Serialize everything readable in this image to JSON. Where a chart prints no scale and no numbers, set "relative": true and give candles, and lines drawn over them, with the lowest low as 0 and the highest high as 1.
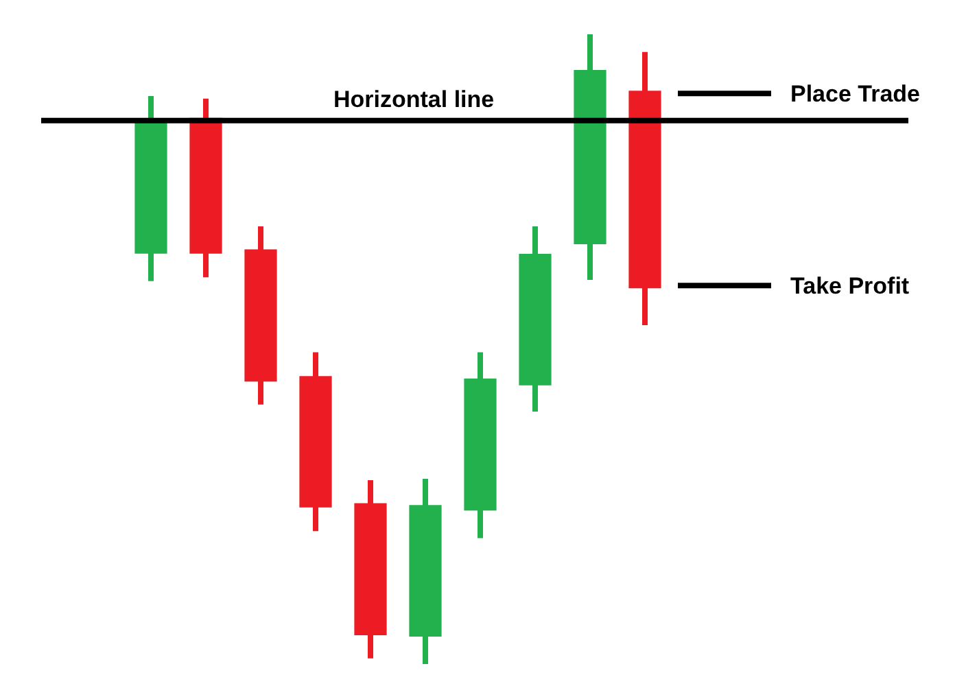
{
  "chart_data": {
    "type": "candlestick",
    "relative": true,
    "categories": [
      null,
      null,
      null,
      null,
      null,
      null,
      null,
      null,
      null,
      null
    ],
    "ohlc": [
      [
        0.656,
        0.902,
        0.608,
        0.858
      ],
      [
        0.863,
        0.898,
        0.614,
        0.656
      ],
      [
        0.654,
        0.695,
        0.412,
        0.453
      ],
      [
        0.453,
        0.495,
        0.211,
        0.253
      ],
      [
        0.251,
        0.292,
        0.009,
        0.05
      ],
      [
        0.048,
        0.294,
        0,
        0.248
      ],
      [
        0.248,
        0.495,
        0.2,
        0.449
      ],
      [
        0.447,
        0.695,
        0.401,
        0.647
      ],
      [
        0.671,
        1,
        0.61,
        0.939
      ],
      [
        0.906,
        0.972,
        0.538,
        0.601
      ]
    ],
    "colors": [
      "#22b14c",
      "#ed1c24",
      "#ed1c24",
      "#ed1c24",
      "#ed1c24",
      "#22b14c",
      "#22b14c",
      "#22b14c",
      "#22b14c",
      "#ed1c24"
    ],
    "ref_lines": [
      {
        "axis": "y",
        "value": 0.863,
        "label": "Horizontal line",
        "color": "#000000"
      },
      {
        "axis": "y",
        "value": 0.906,
        "label": "Place Trade",
        "color": "#000000"
      },
      {
        "axis": "y",
        "value": 0.601,
        "label": "Take Profit",
        "color": "#000000"
      }
    ]
  }
}
